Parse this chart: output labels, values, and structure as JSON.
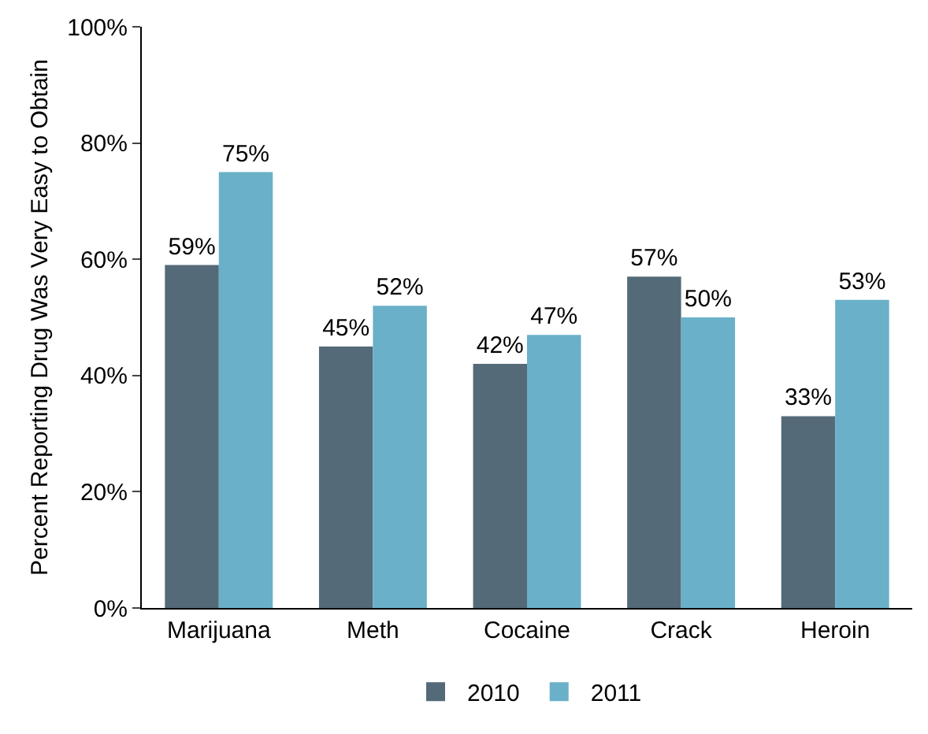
{
  "chart_data": {
    "type": "bar",
    "ylabel": "Percent Reporting Drug Was Very Easy to Obtain",
    "categories": [
      "Marijuana",
      "Meth",
      "Cocaine",
      "Crack",
      "Heroin"
    ],
    "series": [
      {
        "name": "2010",
        "color": "#546a78",
        "values": [
          59,
          45,
          42,
          57,
          33
        ],
        "value_labels": [
          "59%",
          "45%",
          "42%",
          "57%",
          "33%"
        ]
      },
      {
        "name": "2011",
        "color": "#6ab0c8",
        "values": [
          75,
          52,
          47,
          50,
          53
        ],
        "value_labels": [
          "75%",
          "52%",
          "47%",
          "50%",
          "53%"
        ]
      }
    ],
    "ylim": [
      0,
      100
    ],
    "yticks": [
      {
        "value": 0,
        "label": "0%"
      },
      {
        "value": 20,
        "label": "20%"
      },
      {
        "value": 40,
        "label": "40%"
      },
      {
        "value": 60,
        "label": "60%"
      },
      {
        "value": 80,
        "label": "80%"
      },
      {
        "value": 100,
        "label": "100%"
      }
    ],
    "grid": false,
    "legend": "bottom"
  }
}
